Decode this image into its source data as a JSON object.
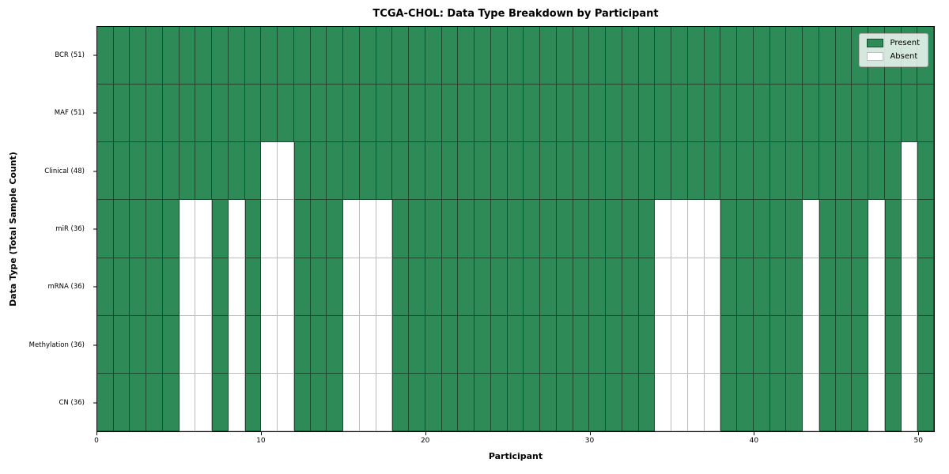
{
  "chart_data": {
    "type": "heatmap",
    "title": "TCGA-CHOL: Data Type Breakdown by Participant",
    "xlabel": "Participant",
    "ylabel": "Data Type (Total Sample Count)",
    "n_participants": 51,
    "x_range": [
      0,
      51
    ],
    "x_ticks": [
      0,
      10,
      20,
      30,
      40,
      50
    ],
    "grid": true,
    "legend_position": "upper right",
    "colors": {
      "present": "#2e8b57",
      "absent": "#ffffff",
      "cell_edge_dark": "#1b4a30",
      "grid_line": "#bdbdbd",
      "spine": "#000000"
    },
    "legend": [
      {
        "label": "Present",
        "color": "#2e8b57"
      },
      {
        "label": "Absent",
        "color": "#ffffff"
      }
    ],
    "rows": [
      {
        "label": "BCR (51)",
        "data_type": "BCR",
        "present_count": 51,
        "absent_participants": []
      },
      {
        "label": "MAF (51)",
        "data_type": "MAF",
        "present_count": 51,
        "absent_participants": []
      },
      {
        "label": "Clinical (48)",
        "data_type": "Clinical",
        "present_count": 48,
        "absent_participants": [
          10,
          11,
          49
        ]
      },
      {
        "label": "miR (36)",
        "data_type": "miR",
        "present_count": 36,
        "absent_participants": [
          5,
          6,
          8,
          10,
          11,
          15,
          16,
          17,
          34,
          35,
          36,
          37,
          43,
          47,
          49
        ]
      },
      {
        "label": "mRNA (36)",
        "data_type": "mRNA",
        "present_count": 36,
        "absent_participants": [
          5,
          6,
          8,
          10,
          11,
          15,
          16,
          17,
          34,
          35,
          36,
          37,
          43,
          47,
          49
        ]
      },
      {
        "label": "Methylation (36)",
        "data_type": "Methylation",
        "present_count": 36,
        "absent_participants": [
          5,
          6,
          8,
          10,
          11,
          15,
          16,
          17,
          34,
          35,
          36,
          37,
          43,
          47,
          49
        ]
      },
      {
        "label": "CN (36)",
        "data_type": "CN",
        "present_count": 36,
        "absent_participants": [
          5,
          6,
          8,
          10,
          11,
          15,
          16,
          17,
          34,
          35,
          36,
          37,
          43,
          47,
          49
        ]
      }
    ]
  }
}
